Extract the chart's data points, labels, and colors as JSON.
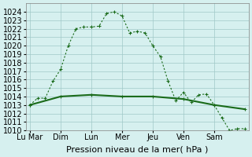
{
  "title": "",
  "xlabel": "Pression niveau de la mer( hPa )",
  "ylim": [
    1010,
    1025
  ],
  "yticks": [
    1010,
    1011,
    1012,
    1013,
    1014,
    1015,
    1016,
    1017,
    1018,
    1019,
    1020,
    1021,
    1022,
    1023,
    1024
  ],
  "background_color": "#d6f0ef",
  "grid_color": "#a0c8c8",
  "line_color": "#1a6b1a",
  "series1_x": [
    0,
    1,
    2,
    3,
    4,
    5,
    6,
    7,
    8,
    9,
    10,
    11,
    12,
    13,
    14,
    15,
    16,
    17,
    18,
    19,
    20,
    21,
    22,
    23,
    24,
    25,
    26,
    27,
    28
  ],
  "series1_y": [
    1013.0,
    1013.8,
    1013.8,
    1015.8,
    1017.2,
    1020.0,
    1022.0,
    1022.2,
    1022.2,
    1022.3,
    1023.8,
    1024.0,
    1023.5,
    1021.5,
    1021.7,
    1021.5,
    1020.0,
    1018.7,
    1015.8,
    1013.5,
    1014.5,
    1013.3,
    1014.2,
    1014.3,
    1013.0,
    1011.5,
    1010.0,
    1010.2,
    1010.2
  ],
  "series2_x": [
    0,
    4,
    8,
    12,
    16,
    20,
    24,
    28
  ],
  "series2_y": [
    1013.0,
    1014.0,
    1014.2,
    1014.0,
    1014.0,
    1013.7,
    1013.0,
    1012.5
  ],
  "xtick_positions": [
    0,
    4,
    8,
    12,
    16,
    20,
    24,
    28
  ],
  "xtick_labels": [
    "Lu Mar",
    "Dim",
    "Lun",
    "Mer",
    "Jeu",
    "Ven",
    "Sam",
    ""
  ],
  "font_size": 7
}
